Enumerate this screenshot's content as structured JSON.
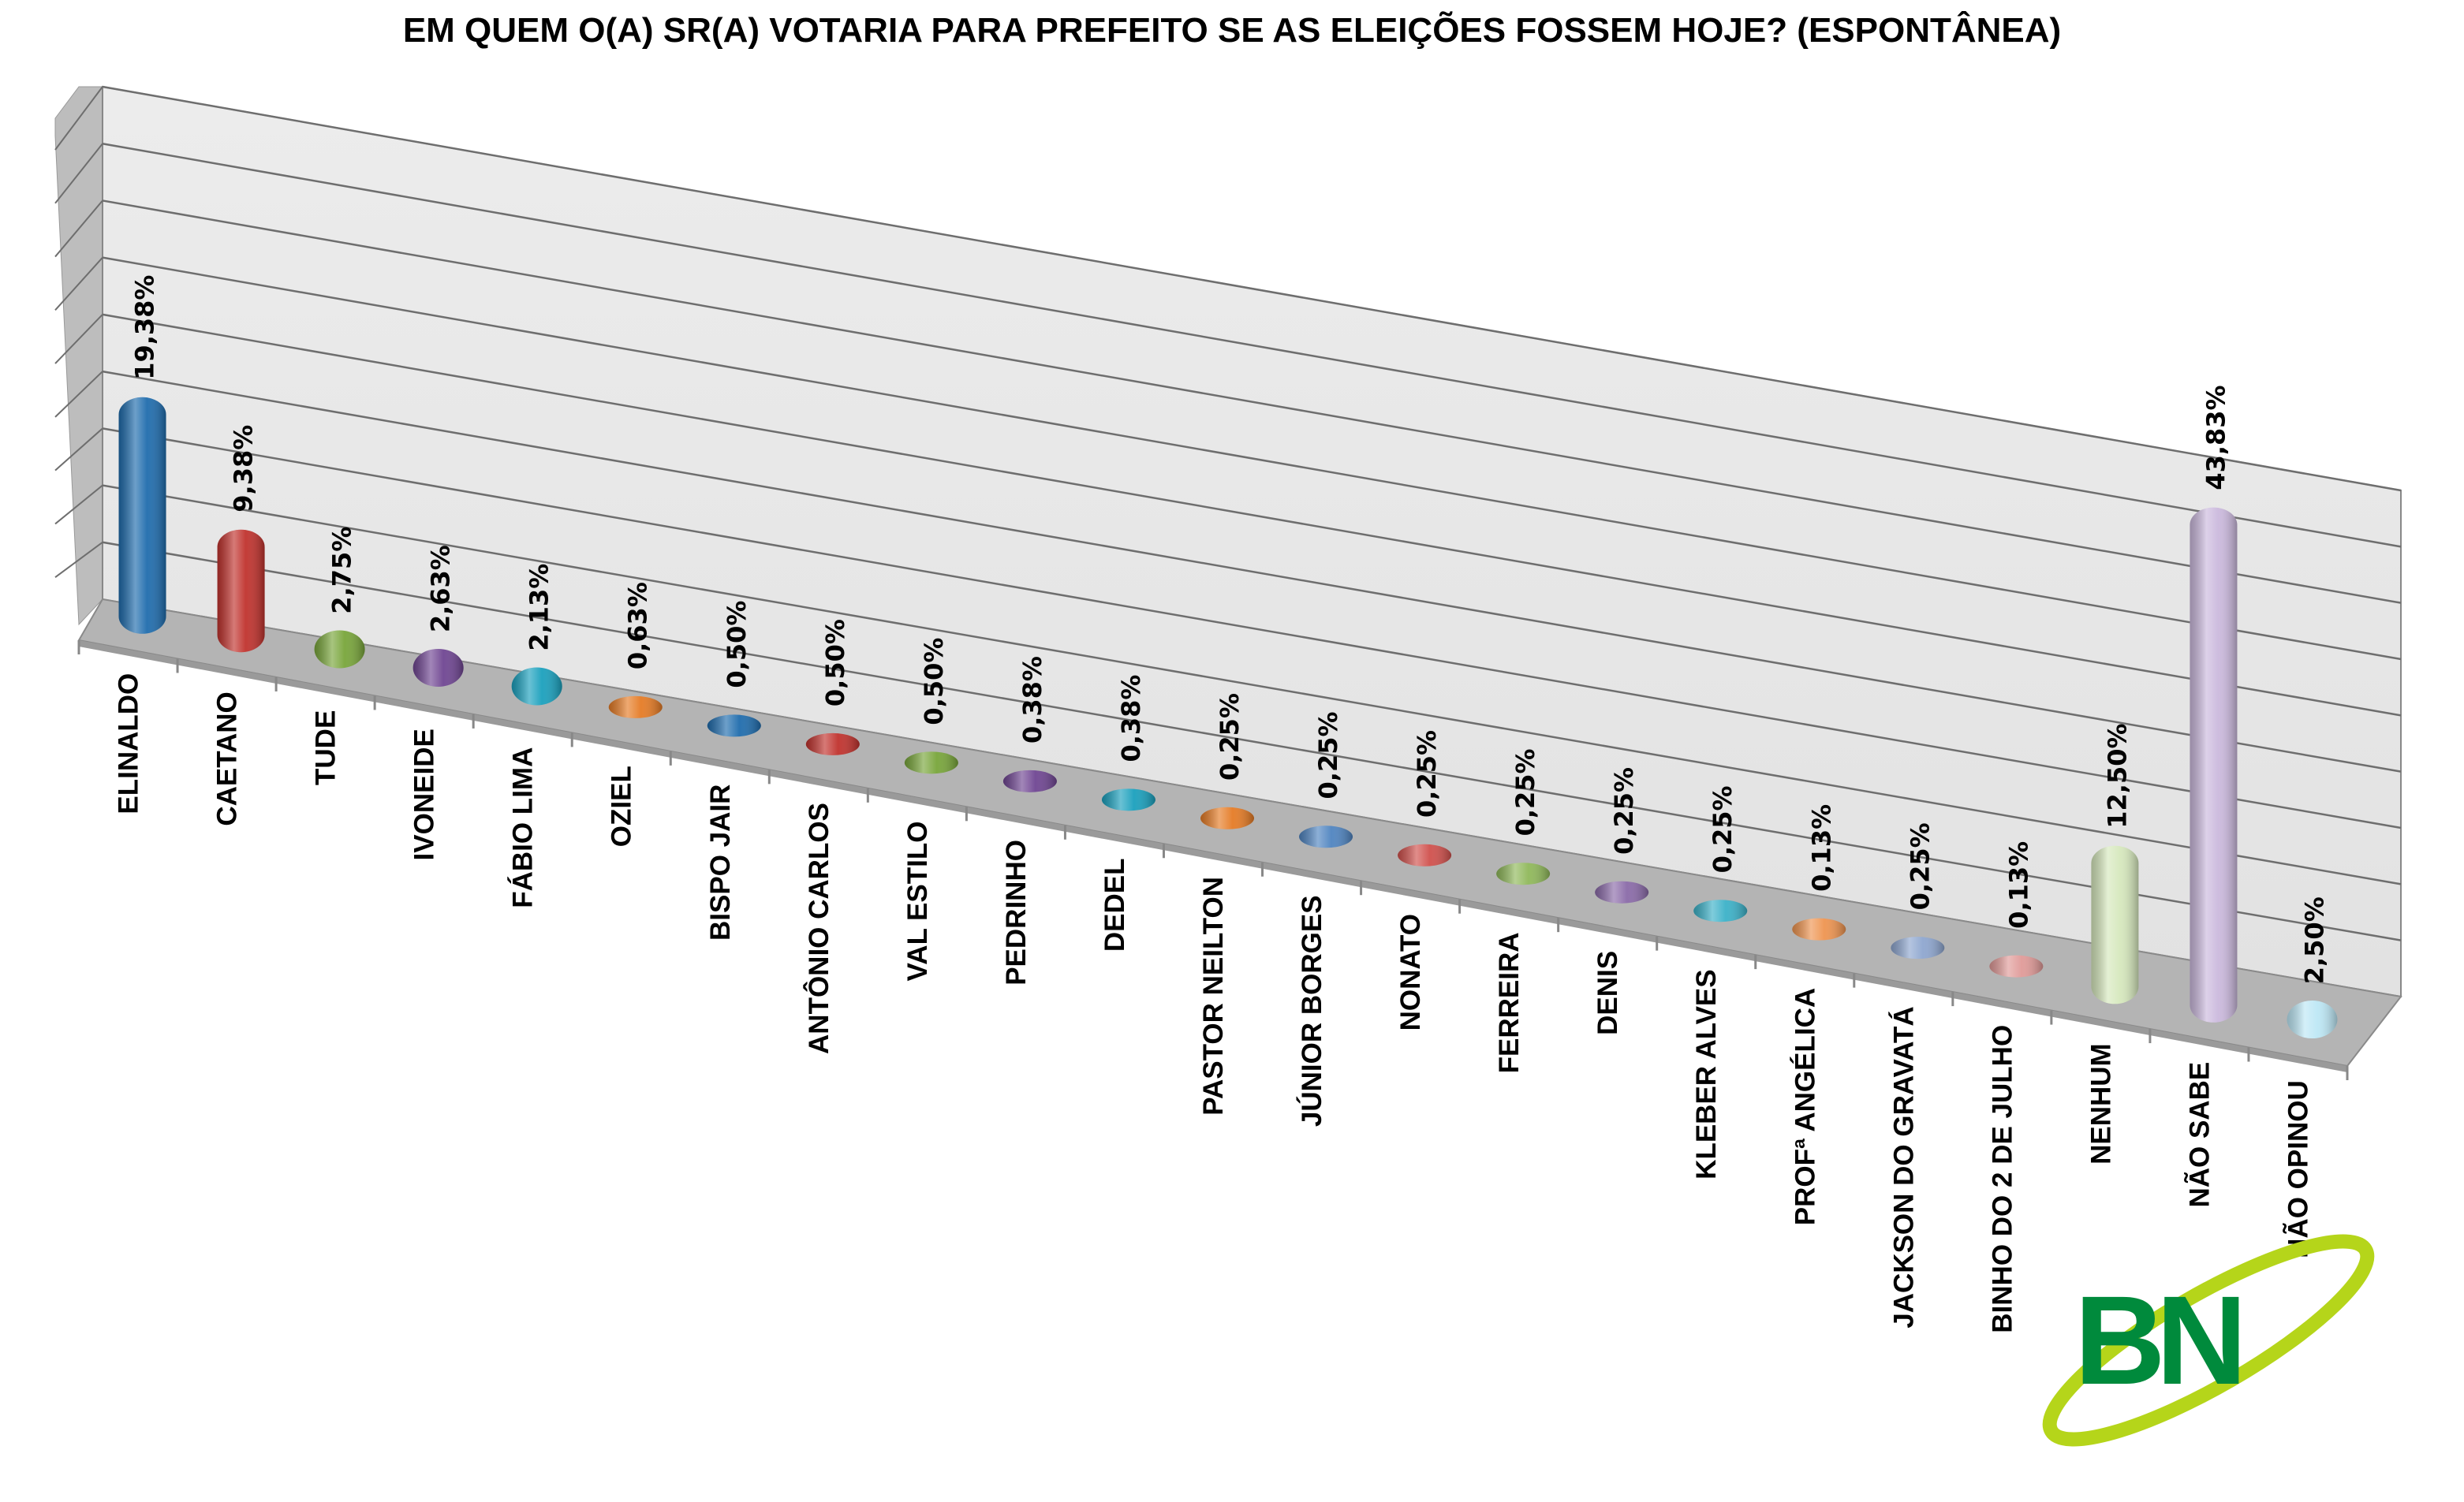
{
  "chart_data": {
    "type": "bar",
    "title": "EM QUEM O(A) SR(A) VOTARIA PARA PREFEITO SE AS ELEIÇÕES FOSSEM HOJE? (ESPONTÂNEA)",
    "xlabel": "",
    "ylabel": "",
    "ylim": [
      0,
      45
    ],
    "grid": true,
    "style": "3d-cylinder",
    "categories": [
      "ELINALDO",
      "CAETANO",
      "TUDE",
      "IVONEIDE",
      "FÁBIO LIMA",
      "OZIEL",
      "BISPO JAIR",
      "ANTÔNIO CARLOS",
      "VAL ESTILO",
      "PEDRINHO",
      "DEDEL",
      "PASTOR NEILTON",
      "JÚNIOR BORGES",
      "NONATO",
      "FERREIRA",
      "DENIS",
      "KLEBER ALVES",
      "PROFª ANGÉLICA",
      "JACKSON DO GRAVATÁ",
      "BINHO DO 2 DE JULHO",
      "NENHUM",
      "NÃO SABE",
      "NÃO OPINOU"
    ],
    "values": [
      19.38,
      9.38,
      2.75,
      2.63,
      2.13,
      0.63,
      0.5,
      0.5,
      0.5,
      0.38,
      0.38,
      0.25,
      0.25,
      0.25,
      0.25,
      0.25,
      0.25,
      0.13,
      0.25,
      0.13,
      12.5,
      43.83,
      2.5
    ],
    "data_labels": [
      "19,38%",
      "9,38%",
      "2,75%",
      "2,63%",
      "2,13%",
      "0,63%",
      "0,50%",
      "0,50%",
      "0,50%",
      "0,38%",
      "0,38%",
      "0,25%",
      "0,25%",
      "0,25%",
      "0,25%",
      "0,25%",
      "0,25%",
      "0,13%",
      "0,25%",
      "0,13%",
      "12,50%",
      "43,83%",
      "2,50%"
    ],
    "colors": [
      "#1f6cad",
      "#c0322d",
      "#78a53a",
      "#6f4592",
      "#1aa0bd",
      "#e57b25",
      "#1f6cad",
      "#c0322d",
      "#78a53a",
      "#6f4592",
      "#1aa0bd",
      "#e57b25",
      "#4f84c0",
      "#d0504c",
      "#8fb85a",
      "#8a6aa8",
      "#3bb1c8",
      "#ee9450",
      "#8ea6cf",
      "#e09a98",
      "#d6e8bd",
      "#cbb9dd",
      "#bde7f5"
    ]
  },
  "logo": {
    "text": "BN",
    "green": "#008a3c",
    "swoosh": "#b5d51a"
  }
}
